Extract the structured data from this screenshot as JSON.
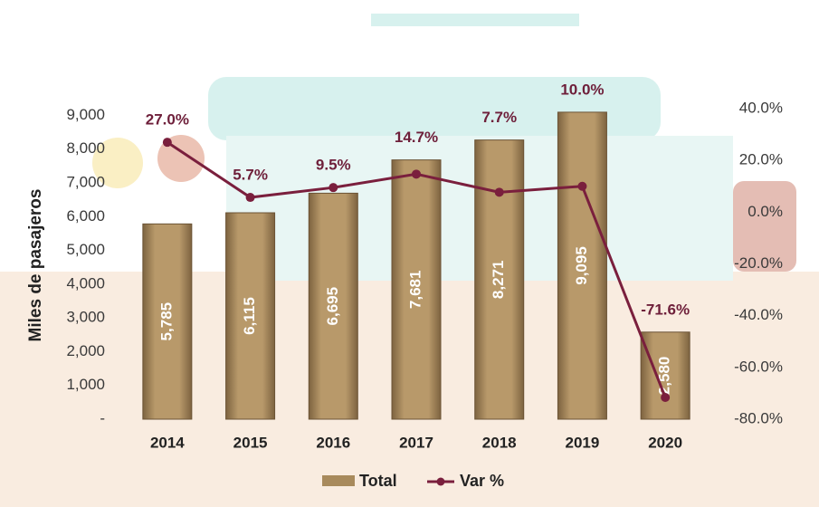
{
  "chart_data": {
    "type": "bar_line",
    "y_label": "Miles de pasajeros",
    "categories": [
      "2014",
      "2015",
      "2016",
      "2017",
      "2018",
      "2019",
      "2020"
    ],
    "series": [
      {
        "name": "Total",
        "type": "bar",
        "color": "#a88a5c",
        "values": [
          5785,
          6115,
          6695,
          7681,
          8271,
          9095,
          2580
        ],
        "value_labels": [
          "5,785",
          "6,115",
          "6,695",
          "7,681",
          "8,271",
          "9,095",
          "2,580"
        ]
      },
      {
        "name": "Var %",
        "type": "line",
        "axis": "y2",
        "color": "#7a1f3d",
        "values": [
          27.0,
          5.7,
          9.5,
          14.7,
          7.7,
          10.0,
          -71.6
        ],
        "value_labels": [
          "27.0%",
          "5.7%",
          "9.5%",
          "14.7%",
          "7.7%",
          "10.0%",
          "-71.6%"
        ]
      }
    ],
    "ylim": [
      0,
      9200
    ],
    "yticks": [
      {
        "value": 0,
        "label": "-"
      },
      {
        "value": 1000,
        "label": "1,000"
      },
      {
        "value": 2000,
        "label": "2,000"
      },
      {
        "value": 3000,
        "label": "3,000"
      },
      {
        "value": 4000,
        "label": "4,000"
      },
      {
        "value": 5000,
        "label": "5,000"
      },
      {
        "value": 6000,
        "label": "6,000"
      },
      {
        "value": 7000,
        "label": "7,000"
      },
      {
        "value": 8000,
        "label": "8,000"
      },
      {
        "value": 9000,
        "label": "9,000"
      }
    ],
    "y2lim": [
      -80,
      40
    ],
    "y2ticks": [
      {
        "value": -80,
        "label": "-80.0%"
      },
      {
        "value": -60,
        "label": "-60.0%"
      },
      {
        "value": -40,
        "label": "-40.0%"
      },
      {
        "value": -20,
        "label": "-20.0%"
      },
      {
        "value": 0,
        "label": "0.0%"
      },
      {
        "value": 20,
        "label": "20.0%"
      },
      {
        "value": 40,
        "label": "40.0%"
      }
    ],
    "legend": "bottom"
  }
}
